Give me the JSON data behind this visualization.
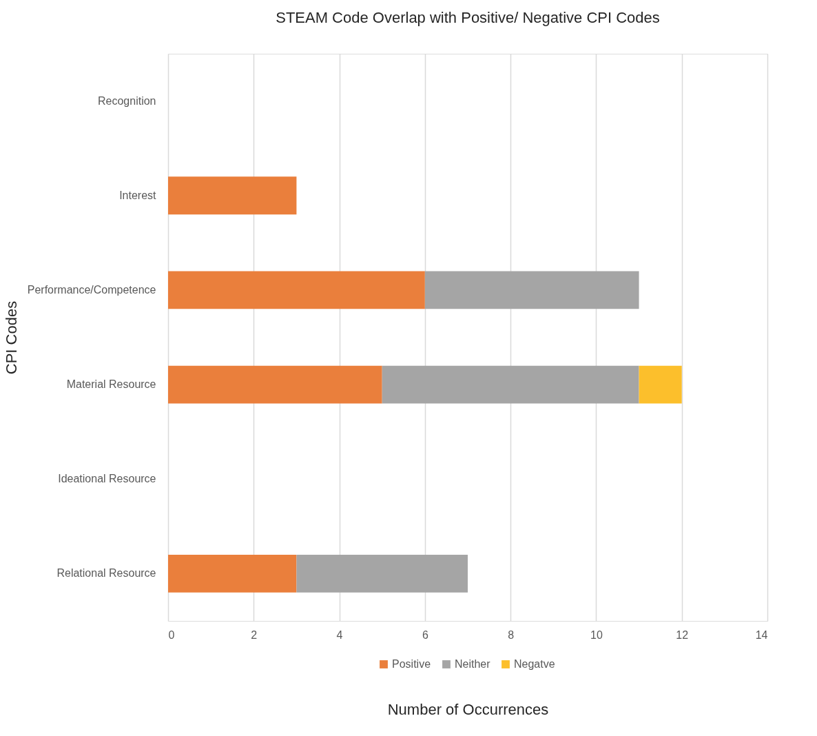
{
  "chart_data": {
    "type": "bar",
    "orientation": "horizontal",
    "stacked": true,
    "title": "STEAM Code Overlap with Positive/ Negative CPI Codes",
    "xlabel": "Number of Occurrences",
    "ylabel": "CPI Codes",
    "categories": [
      "Recognition",
      "Interest",
      "Performance/Competence",
      "Material Resource",
      "Ideational Resource",
      "Relational Resource"
    ],
    "series": [
      {
        "name": "Positive",
        "color": "#ea7f3c",
        "values": [
          0,
          3,
          6,
          5,
          0,
          3
        ]
      },
      {
        "name": "Neither",
        "color": "#a5a5a5",
        "values": [
          0,
          0,
          5,
          6,
          0,
          4
        ]
      },
      {
        "name": "Negatve",
        "color": "#fcbf2c",
        "values": [
          0,
          0,
          0,
          1,
          0,
          0
        ]
      }
    ],
    "xlim": [
      0,
      14
    ],
    "xticks": [
      0,
      2,
      4,
      6,
      8,
      10,
      12,
      14
    ],
    "grid": "x",
    "legend": "bottom"
  }
}
